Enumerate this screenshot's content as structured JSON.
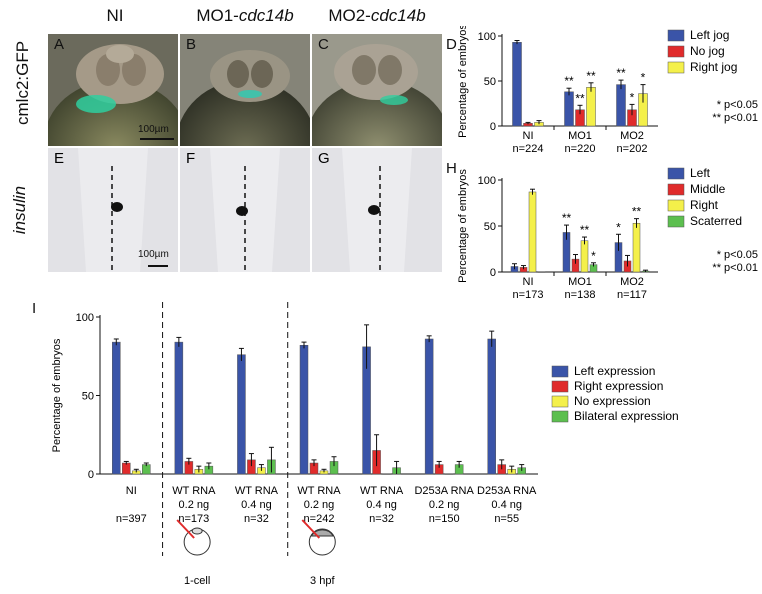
{
  "columns": {
    "ni": "NI",
    "mo1_prefix": "MO1-",
    "mo1_gene": "cdc14b",
    "mo2_prefix": "MO2-",
    "mo2_gene": "cdc14b"
  },
  "rows": {
    "top": "cmlc2:GFP",
    "bottom": "insulin"
  },
  "panel_letters": {
    "a": "A",
    "b": "B",
    "c": "C",
    "d": "D",
    "e": "E",
    "f": "F",
    "g": "G",
    "h": "H",
    "i": "I"
  },
  "scale_bars": {
    "top": "100µm",
    "bottom": "100µm"
  },
  "chart_data": [
    {
      "panel": "D",
      "type": "bar",
      "ylabel": "Percentage of embryos",
      "ylim": [
        0,
        100
      ],
      "yticks": [
        "0",
        "50",
        "100"
      ],
      "categories": [
        "NI",
        "MO1",
        "MO2"
      ],
      "counts": [
        "n=224",
        "n=220",
        "n=202"
      ],
      "series": [
        {
          "name": "Left jog",
          "color": "#3a54a8",
          "values": [
            93,
            38,
            46
          ],
          "err": [
            2,
            4,
            5
          ],
          "sig": [
            "",
            "**",
            "**"
          ]
        },
        {
          "name": "No jog",
          "color": "#e02b2b",
          "values": [
            3,
            18,
            18
          ],
          "err": [
            1,
            5,
            6
          ],
          "sig": [
            "",
            "**",
            "*"
          ]
        },
        {
          "name": "Right jog",
          "color": "#f4f04a",
          "values": [
            4,
            43,
            36
          ],
          "err": [
            2,
            5,
            10
          ],
          "sig": [
            "",
            "**",
            "*"
          ]
        }
      ],
      "notes": [
        "* p<0.05",
        "** p<0.01"
      ]
    },
    {
      "panel": "H",
      "type": "bar",
      "ylabel": "Percentage of embryos",
      "ylim": [
        0,
        100
      ],
      "yticks": [
        "0",
        "50",
        "100"
      ],
      "categories": [
        "NI",
        "MO1",
        "MO2"
      ],
      "counts": [
        "n=173",
        "n=138",
        "n=117"
      ],
      "series": [
        {
          "name": "Left",
          "color": "#3a54a8",
          "values": [
            6,
            43,
            32
          ],
          "err": [
            3,
            8,
            9
          ],
          "sig": [
            "",
            "**",
            "*"
          ]
        },
        {
          "name": "Middle",
          "color": "#e02b2b",
          "values": [
            5,
            14,
            12
          ],
          "err": [
            2,
            5,
            6
          ],
          "sig": [
            "",
            "",
            ""
          ]
        },
        {
          "name": "Right",
          "color": "#f4f04a",
          "values": [
            87,
            34,
            53
          ],
          "err": [
            3,
            4,
            5
          ],
          "sig": [
            "",
            "**",
            "**"
          ]
        },
        {
          "name": "Scaterred",
          "color": "#5cbf4f",
          "values": [
            0,
            8,
            1
          ],
          "err": [
            0,
            2,
            1
          ],
          "sig": [
            "",
            "*",
            ""
          ]
        }
      ],
      "notes": [
        "* p<0.05",
        "** p<0.01"
      ]
    },
    {
      "panel": "I",
      "type": "bar",
      "ylabel": "Percentage of embryos",
      "ylim": [
        0,
        100
      ],
      "yticks": [
        "0",
        "50",
        "100"
      ],
      "categories": [
        {
          "l1": "NI",
          "l2": "",
          "l3": "n=397"
        },
        {
          "l1": "WT RNA",
          "l2": "0.2 ng",
          "l3": "n=173"
        },
        {
          "l1": "WT RNA",
          "l2": "0.4 ng",
          "l3": "n=32"
        },
        {
          "l1": "WT RNA",
          "l2": "0.2 ng",
          "l3": "n=242"
        },
        {
          "l1": "WT RNA",
          "l2": "0.4 ng",
          "l3": "n=32"
        },
        {
          "l1": "D253A RNA",
          "l2": "0.2 ng",
          "l3": "n=150"
        },
        {
          "l1": "D253A RNA",
          "l2": "0.4 ng",
          "l3": "n=55"
        }
      ],
      "series": [
        {
          "name": "Left expression",
          "color": "#3a54a8",
          "values": [
            84,
            84,
            76,
            82,
            81,
            86,
            86
          ],
          "err": [
            2,
            3,
            4,
            2,
            14,
            2,
            5
          ]
        },
        {
          "name": "Right expression",
          "color": "#e02b2b",
          "values": [
            7,
            8,
            9,
            7,
            15,
            6,
            6
          ],
          "err": [
            1,
            2,
            4,
            2,
            10,
            2,
            3
          ]
        },
        {
          "name": "No expression",
          "color": "#f4f04a",
          "values": [
            2,
            3,
            4,
            2,
            0,
            0,
            3
          ],
          "err": [
            1,
            2,
            2,
            1,
            0,
            0,
            2
          ]
        },
        {
          "name": "Bilateral expression",
          "color": "#5cbf4f",
          "values": [
            6,
            5,
            9,
            8,
            4,
            6,
            4
          ],
          "err": [
            1,
            2,
            8,
            3,
            4,
            2,
            2
          ]
        }
      ],
      "group_labels": [
        "1-cell",
        "3 hpf"
      ]
    }
  ]
}
